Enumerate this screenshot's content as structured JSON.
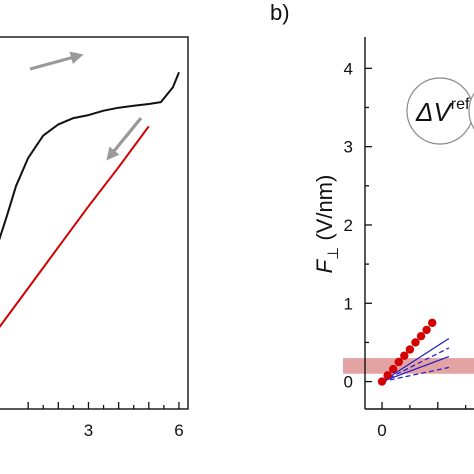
{
  "chart_data": [
    {
      "panel": "a",
      "type": "line",
      "x_ticks": [
        3,
        6
      ],
      "xlim_visible": [
        0,
        6.3
      ],
      "ylim": [
        0,
        1
      ],
      "series": [
        {
          "color": "#111111",
          "x": [
            0.0,
            0.3,
            0.6,
            1.0,
            1.5,
            2.0,
            2.5,
            3.0,
            3.5,
            4.0,
            4.5,
            5.0,
            5.4,
            5.8,
            6.0
          ],
          "y": [
            0.445,
            0.52,
            0.6,
            0.675,
            0.735,
            0.765,
            0.782,
            0.79,
            0.802,
            0.81,
            0.815,
            0.82,
            0.825,
            0.865,
            0.905
          ]
        },
        {
          "color": "#d40000",
          "x": [
            0.0,
            1.0,
            2.0,
            3.0,
            4.0,
            5.0
          ],
          "y": [
            0.215,
            0.325,
            0.435,
            0.545,
            0.65,
            0.76
          ]
        }
      ],
      "arrows": [
        {
          "direction": "right",
          "color": "#999999"
        },
        {
          "direction": "down-left",
          "color": "#999999"
        }
      ]
    },
    {
      "panel": "b",
      "panel_label": "b)",
      "type": "scatter",
      "ylabel_main": "F",
      "ylabel_sub": "⊥",
      "ylabel_unit": "(V/nm)",
      "y_ticks": [
        0,
        1,
        2,
        3,
        4
      ],
      "x_ticks": [
        0
      ],
      "ylim": [
        -0.35,
        4.4
      ],
      "xlim_visible": [
        -0.7,
        1.65
      ],
      "band": {
        "y_range": [
          0.1,
          0.3
        ],
        "color": "#e4a3a3"
      },
      "red_points": {
        "color": "#d40000",
        "x": [
          0.0,
          0.1,
          0.2,
          0.3,
          0.4,
          0.5,
          0.6,
          0.7,
          0.8,
          0.9
        ],
        "y": [
          0.0,
          0.08,
          0.16,
          0.25,
          0.33,
          0.41,
          0.5,
          0.58,
          0.66,
          0.75
        ]
      },
      "blue_lines": [
        {
          "color": "#1a1acc",
          "dashed": false,
          "x": [
            0.0,
            1.2
          ],
          "y": [
            0.0,
            0.55
          ]
        },
        {
          "color": "#1a1acc",
          "dashed": true,
          "x": [
            0.0,
            1.2
          ],
          "y": [
            0.0,
            0.43
          ]
        },
        {
          "color": "#1a1acc",
          "dashed": false,
          "x": [
            0.0,
            1.2
          ],
          "y": [
            0.0,
            0.32
          ]
        },
        {
          "color": "#1a1acc",
          "dashed": true,
          "x": [
            0.0,
            1.2
          ],
          "y": [
            0.0,
            0.18
          ]
        }
      ],
      "inset_label": {
        "main": "ΔV",
        "sup": "ref"
      }
    }
  ]
}
